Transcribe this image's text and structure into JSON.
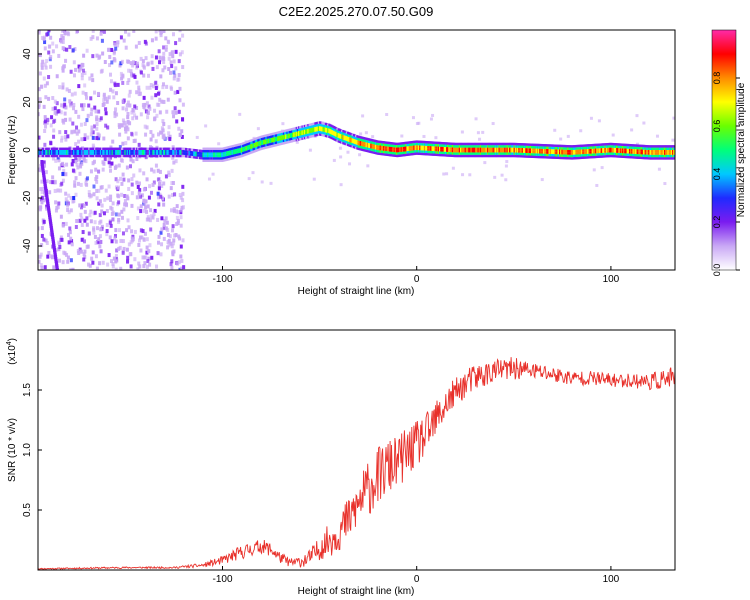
{
  "title": "C2E2.2025.270.07.50.G09",
  "chart_data": [
    {
      "type": "heatmap",
      "name": "spectrogram",
      "xlabel": "Height of straight line (km)",
      "ylabel": "Frequency (Hz)",
      "xlim": [
        -195,
        133
      ],
      "ylim": [
        -50,
        50
      ],
      "xticks": [
        -100,
        0,
        100
      ],
      "yticks": [
        -40,
        -20,
        0,
        20,
        40
      ],
      "ridge": {
        "x": [
          -195,
          -150,
          -120,
          -110,
          -100,
          -90,
          -80,
          -70,
          -60,
          -50,
          -45,
          -40,
          -30,
          -20,
          -10,
          0,
          20,
          50,
          80,
          100,
          120,
          133
        ],
        "freq": [
          -1,
          -1,
          -1,
          -2,
          -2,
          0,
          3,
          5,
          7,
          9,
          8,
          6,
          3,
          1,
          0,
          1,
          0,
          0,
          -1,
          0,
          -1,
          -1
        ]
      },
      "colorbar": {
        "label": "Normalized spectral amplitude",
        "range": [
          0,
          1
        ],
        "ticks": [
          "0.0",
          "0.2",
          "0.4",
          "0.6",
          "0.8"
        ],
        "colors": [
          "#ffffff",
          "#c9a8f5",
          "#7a1cf0",
          "#1f2bff",
          "#00c8ff",
          "#00ff7a",
          "#6aff00",
          "#ffff00",
          "#ff8c00",
          "#ff0000",
          "#ff2aa8"
        ]
      }
    },
    {
      "type": "line",
      "name": "snr",
      "xlabel": "Height of straight line (km)",
      "ylabel": "SNR (10 * v/v)",
      "scale_label": "(x10",
      "scale_exp": "4",
      "xlim": [
        -195,
        133
      ],
      "ylim": [
        0,
        2.0
      ],
      "xticks": [
        -100,
        0,
        100
      ],
      "yticks": [
        "0.5",
        "1.0",
        "1.5"
      ],
      "series": [
        {
          "name": "SNR",
          "color": "#e8302a",
          "x": [
            -195,
            -150,
            -125,
            -110,
            -100,
            -90,
            -80,
            -75,
            -70,
            -65,
            -60,
            -55,
            -50,
            -45,
            -40,
            -35,
            -30,
            -25,
            -20,
            -15,
            -10,
            -5,
            0,
            5,
            10,
            15,
            20,
            25,
            30,
            40,
            50,
            60,
            70,
            80,
            90,
            100,
            110,
            120,
            133
          ],
          "y": [
            0.01,
            0.02,
            0.02,
            0.04,
            0.08,
            0.15,
            0.2,
            0.17,
            0.1,
            0.06,
            0.07,
            0.1,
            0.18,
            0.25,
            0.32,
            0.42,
            0.55,
            0.68,
            0.78,
            0.85,
            0.9,
            0.97,
            1.05,
            1.12,
            1.25,
            1.38,
            1.48,
            1.55,
            1.6,
            1.66,
            1.68,
            1.66,
            1.63,
            1.6,
            1.6,
            1.58,
            1.58,
            1.57,
            1.6
          ],
          "noise": [
            0.004,
            0.006,
            0.006,
            0.015,
            0.03,
            0.05,
            0.05,
            0.05,
            0.04,
            0.03,
            0.04,
            0.06,
            0.08,
            0.12,
            0.14,
            0.16,
            0.18,
            0.2,
            0.2,
            0.2,
            0.18,
            0.18,
            0.16,
            0.16,
            0.14,
            0.12,
            0.1,
            0.1,
            0.1,
            0.08,
            0.08,
            0.06,
            0.06,
            0.05,
            0.05,
            0.05,
            0.05,
            0.06,
            0.08
          ]
        }
      ]
    }
  ]
}
